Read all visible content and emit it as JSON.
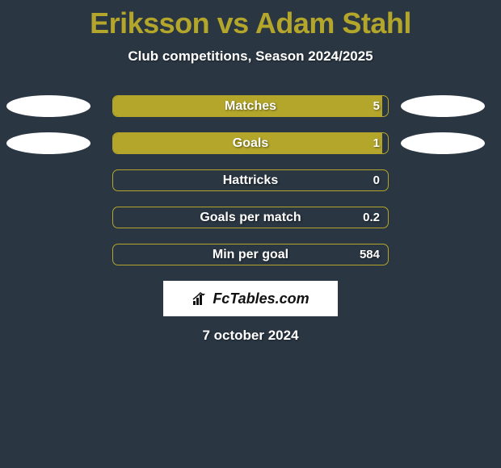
{
  "header": {
    "title": "Eriksson vs Adam Stahl",
    "subtitle": "Club competitions, Season 2024/2025"
  },
  "stats": [
    {
      "label": "Matches",
      "value": "5",
      "fill_pct": 98,
      "show_left_ellipse": true,
      "show_right_ellipse": true
    },
    {
      "label": "Goals",
      "value": "1",
      "fill_pct": 98,
      "show_left_ellipse": true,
      "show_right_ellipse": true
    },
    {
      "label": "Hattricks",
      "value": "0",
      "fill_pct": 0,
      "show_left_ellipse": false,
      "show_right_ellipse": false
    },
    {
      "label": "Goals per match",
      "value": "0.2",
      "fill_pct": 0,
      "show_left_ellipse": false,
      "show_right_ellipse": false
    },
    {
      "label": "Min per goal",
      "value": "584",
      "fill_pct": 0,
      "show_left_ellipse": false,
      "show_right_ellipse": false
    }
  ],
  "logo": {
    "text": "FcTables.com"
  },
  "date": "7 october 2024",
  "colors": {
    "background": "#2a3642",
    "accent": "#b3a62b",
    "ellipse": "#ffffff",
    "text": "#ffffff"
  }
}
